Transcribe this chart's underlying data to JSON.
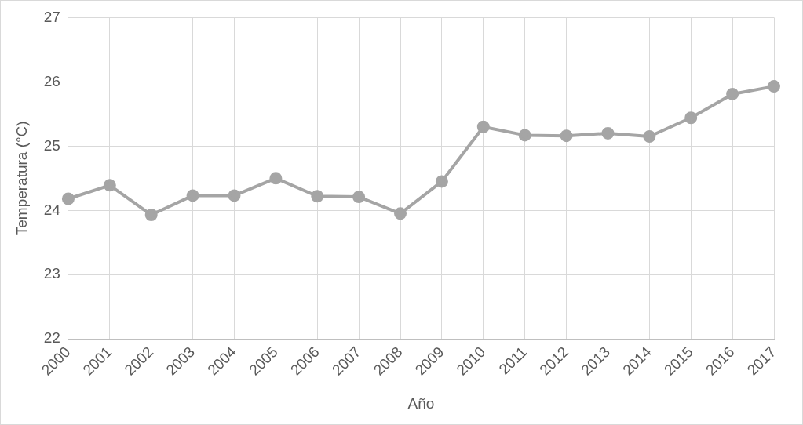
{
  "chart_data": {
    "type": "line",
    "xlabel": "Año",
    "ylabel": "Temperatura (°C)",
    "categories": [
      "2000",
      "2001",
      "2002",
      "2003",
      "2004",
      "2005",
      "2006",
      "2007",
      "2008",
      "2009",
      "2010",
      "2011",
      "2012",
      "2013",
      "2014",
      "2015",
      "2016",
      "2017"
    ],
    "series": [
      {
        "color": "#a5a5a5",
        "values": [
          24.18,
          24.39,
          23.93,
          24.23,
          24.23,
          24.5,
          24.22,
          24.21,
          23.95,
          24.45,
          25.3,
          25.17,
          25.16,
          25.2,
          25.15,
          25.44,
          25.81,
          25.93
        ]
      }
    ],
    "ylim": [
      22,
      27
    ],
    "yticks": [
      22,
      23,
      24,
      25,
      26,
      27
    ],
    "grid": true,
    "legend": false,
    "marker": "circle",
    "line_style": "solid"
  }
}
